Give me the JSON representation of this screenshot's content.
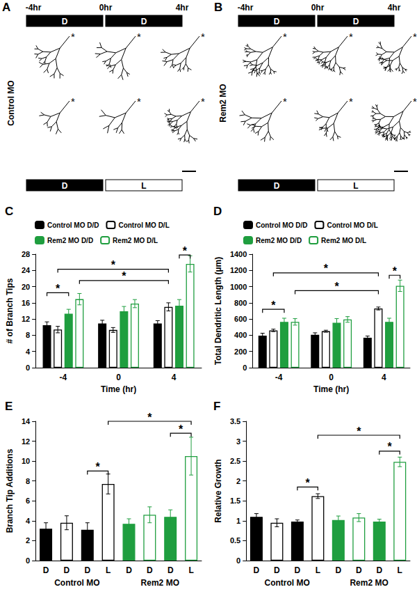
{
  "diagrams": [
    {
      "panel": "A",
      "time_labels": [
        "-4hr",
        "0hr",
        "4hr"
      ],
      "top_conditions": [
        "D",
        "D"
      ],
      "bottom_conditions": [
        "D",
        "L"
      ],
      "row_label": "Control MO",
      "soma_marker": "*"
    },
    {
      "panel": "B",
      "time_labels": [
        "-4hr",
        "0hr",
        "4hr"
      ],
      "top_conditions": [
        "D",
        "D"
      ],
      "bottom_conditions": [
        "D",
        "L"
      ],
      "row_label": "Rem2 MO",
      "soma_marker": "*"
    }
  ],
  "chart_data": [
    {
      "panel": "C",
      "type": "bar",
      "x_label": "Time (hr)",
      "y_label": "# of Branch Tips",
      "categories": [
        "-4",
        "0",
        "4"
      ],
      "ylim": [
        0,
        28
      ],
      "yticks": [
        0,
        4,
        8,
        12,
        16,
        20,
        24,
        28
      ],
      "grid": false,
      "legend": "top-left",
      "series": [
        {
          "name": "Control MO D/D",
          "color": "#000000",
          "marker": "filled",
          "values": [
            10.5,
            10.9,
            10.9
          ],
          "errors": [
            0.8,
            0.8,
            0.7
          ]
        },
        {
          "name": "Control MO D/L",
          "color": "#000000",
          "marker": "hollow",
          "values": [
            9.4,
            9.3,
            15.0
          ],
          "errors": [
            0.8,
            0.6,
            1.0
          ]
        },
        {
          "name": "Rem2 MO D/D",
          "color": "#1f9e3f",
          "marker": "filled",
          "values": [
            13.3,
            13.9,
            15.3
          ],
          "errors": [
            1.1,
            1.2,
            1.5
          ]
        },
        {
          "name": "Rem2 MO D/L",
          "color": "#1f9e3f",
          "marker": "hollow",
          "values": [
            16.9,
            15.8,
            25.6
          ],
          "errors": [
            1.4,
            1.0,
            2.0
          ]
        }
      ],
      "significance": [
        {
          "from": {
            "series": 0,
            "category": 0
          },
          "to": {
            "series": 2,
            "category": 0
          },
          "y": 18.5,
          "label": "*"
        },
        {
          "from": {
            "series": 1,
            "category": 0
          },
          "to": {
            "series": 1,
            "category": 2
          },
          "y": 24.3,
          "label": "*"
        },
        {
          "from": {
            "series": 3,
            "category": 0
          },
          "to": {
            "series": 1,
            "category": 2
          },
          "y": 21.5,
          "label": "*"
        },
        {
          "from": {
            "series": 2,
            "category": 2
          },
          "to": {
            "series": 3,
            "category": 2
          },
          "y": 27.8,
          "label": "*"
        }
      ]
    },
    {
      "panel": "D",
      "type": "bar",
      "x_label": "Time (hr)",
      "y_label": "Total Dendritic Length (µm)",
      "categories": [
        "-4",
        "0",
        "4"
      ],
      "ylim": [
        0,
        1400
      ],
      "yticks": [
        0,
        200,
        400,
        600,
        800,
        1000,
        1200,
        1400
      ],
      "grid": false,
      "legend": "top-left",
      "series": [
        {
          "name": "Control MO D/D",
          "color": "#000000",
          "marker": "filled",
          "values": [
            395,
            405,
            370
          ],
          "errors": [
            30,
            25,
            20
          ]
        },
        {
          "name": "Control MO D/L",
          "color": "#000000",
          "marker": "hollow",
          "values": [
            460,
            450,
            730
          ],
          "errors": [
            15,
            12,
            18
          ]
        },
        {
          "name": "Rem2 MO D/D",
          "color": "#1f9e3f",
          "marker": "filled",
          "values": [
            565,
            555,
            565
          ],
          "errors": [
            45,
            50,
            45
          ]
        },
        {
          "name": "Rem2 MO D/L",
          "color": "#1f9e3f",
          "marker": "hollow",
          "values": [
            565,
            595,
            1010
          ],
          "errors": [
            40,
            35,
            70
          ]
        }
      ],
      "significance": [
        {
          "from": {
            "series": 0,
            "category": 0
          },
          "to": {
            "series": 2,
            "category": 0
          },
          "y": 720,
          "label": "*"
        },
        {
          "from": {
            "series": 1,
            "category": 0
          },
          "to": {
            "series": 1,
            "category": 2
          },
          "y": 1170,
          "label": "*"
        },
        {
          "from": {
            "series": 3,
            "category": 0
          },
          "to": {
            "series": 1,
            "category": 2
          },
          "y": 950,
          "label": "*"
        },
        {
          "from": {
            "series": 2,
            "category": 2
          },
          "to": {
            "series": 3,
            "category": 2
          },
          "y": 1140,
          "label": "*"
        }
      ]
    },
    {
      "panel": "E",
      "type": "bar",
      "y_label": "Branch Tip Additions",
      "categories": [
        "D",
        "D",
        "D",
        "L",
        "D",
        "D",
        "D",
        "L"
      ],
      "group_labels": [
        "Control MO",
        "Rem2 MO"
      ],
      "ylim": [
        0,
        14
      ],
      "yticks": [
        0,
        2,
        4,
        6,
        8,
        10,
        12,
        14
      ],
      "grid": false,
      "stacked": true,
      "series": [
        {
          "color": "#000000",
          "marker": "filled",
          "values": [
            3.2,
            null,
            3.1,
            null,
            null,
            null,
            null,
            null
          ],
          "errors": [
            0.6,
            null,
            0.7,
            null,
            null,
            null,
            null,
            null
          ]
        },
        {
          "color": "#000000",
          "marker": "hollow",
          "values": [
            null,
            3.8,
            null,
            7.7,
            null,
            null,
            null,
            null
          ],
          "errors": [
            null,
            0.7,
            null,
            1.0,
            null,
            null,
            null,
            null
          ]
        },
        {
          "color": "#1f9e3f",
          "marker": "filled",
          "values": [
            null,
            null,
            null,
            null,
            3.7,
            null,
            4.4,
            null
          ],
          "errors": [
            null,
            null,
            null,
            null,
            0.5,
            null,
            0.7,
            null
          ]
        },
        {
          "color": "#1f9e3f",
          "marker": "hollow",
          "values": [
            null,
            null,
            null,
            null,
            null,
            4.6,
            null,
            10.5
          ],
          "errors": [
            null,
            null,
            null,
            null,
            null,
            0.8,
            null,
            1.9
          ]
        }
      ],
      "significance": [
        {
          "from": {
            "category": 2
          },
          "to": {
            "category": 3
          },
          "y": 9.0,
          "label": "*"
        },
        {
          "from": {
            "category": 6
          },
          "to": {
            "category": 7
          },
          "y": 12.8,
          "label": "*"
        },
        {
          "from": {
            "category": 3
          },
          "to": {
            "category": 7
          },
          "y": 14,
          "label": "*"
        }
      ]
    },
    {
      "panel": "F",
      "type": "bar",
      "y_label": "Relative Growth",
      "categories": [
        "D",
        "D",
        "D",
        "L",
        "D",
        "D",
        "D",
        "L"
      ],
      "group_labels": [
        "Control MO",
        "Rem2 MO"
      ],
      "ylim": [
        0,
        3.5
      ],
      "yticks": [
        0,
        0.5,
        1,
        1.5,
        2,
        2.5,
        3,
        3.5
      ],
      "grid": false,
      "stacked": true,
      "series": [
        {
          "color": "#000000",
          "marker": "filled",
          "values": [
            1.1,
            null,
            0.98,
            null,
            null,
            null,
            null,
            null
          ],
          "errors": [
            0.08,
            null,
            0.04,
            null,
            null,
            null,
            null,
            null
          ]
        },
        {
          "color": "#000000",
          "marker": "hollow",
          "values": [
            null,
            0.95,
            null,
            1.62,
            null,
            null,
            null,
            null
          ],
          "errors": [
            null,
            0.1,
            null,
            0.06,
            null,
            null,
            null,
            null
          ]
        },
        {
          "color": "#1f9e3f",
          "marker": "filled",
          "values": [
            null,
            null,
            null,
            null,
            1.02,
            null,
            0.98,
            null
          ],
          "errors": [
            null,
            null,
            null,
            null,
            0.1,
            null,
            0.06,
            null
          ]
        },
        {
          "color": "#1f9e3f",
          "marker": "hollow",
          "values": [
            null,
            null,
            null,
            null,
            null,
            1.08,
            null,
            2.48
          ],
          "errors": [
            null,
            null,
            null,
            null,
            null,
            0.1,
            null,
            0.12
          ]
        }
      ],
      "significance": [
        {
          "from": {
            "category": 2
          },
          "to": {
            "category": 3
          },
          "y": 1.85,
          "label": "*"
        },
        {
          "from": {
            "category": 6
          },
          "to": {
            "category": 7
          },
          "y": 2.75,
          "label": "*"
        },
        {
          "from": {
            "category": 3
          },
          "to": {
            "category": 7
          },
          "y": 3.15,
          "label": "*"
        }
      ]
    }
  ]
}
